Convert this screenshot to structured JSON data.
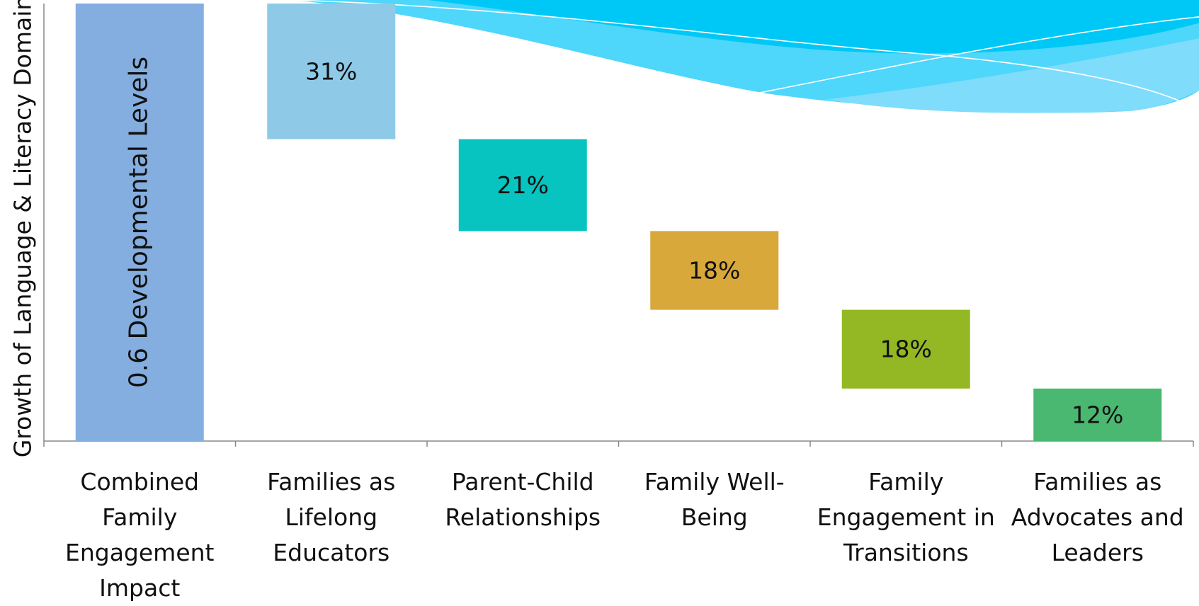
{
  "chart_data": {
    "type": "waterfall",
    "y_axis_label": "Growth of Language & Literacy Domain",
    "total": {
      "category": "Combined Family Engagement Impact",
      "value": 0.6,
      "label": "0.6 Developmental Levels",
      "color": "#84aee0",
      "axis": "y2"
    },
    "categories": [
      "Families as Lifelong Educators",
      "Parent-Child Relationships",
      "Family Well-Being",
      "Family Engagement in Transitions",
      "Families as Advocates and Leaders"
    ],
    "values": [
      31,
      21,
      18,
      18,
      12
    ],
    "value_labels": [
      "31%",
      "21%",
      "18%",
      "18%",
      "12%"
    ],
    "colors": [
      "#8ecae8",
      "#07c4c0",
      "#d8a83a",
      "#94b823",
      "#4ab870"
    ],
    "ylim": [
      0,
      100
    ],
    "y2lim": [
      0,
      0.6
    ]
  }
}
